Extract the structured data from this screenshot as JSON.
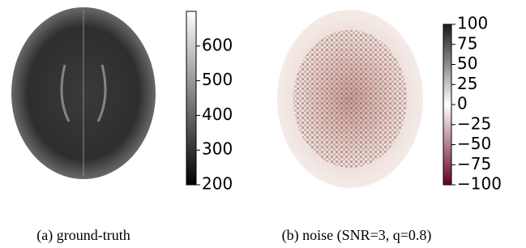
{
  "chart_data": [
    {
      "type": "image",
      "caption": "(a) ground-truth",
      "colors": [
        "#000000",
        "#ffffff"
      ],
      "ylim": [
        200,
        700
      ],
      "yticks": [
        200,
        300,
        400,
        500,
        600
      ]
    },
    {
      "type": "image",
      "caption": "(b) noise (SNR=3, q=0.8)",
      "colors": [
        "#67001f",
        "#ffffff",
        "#1a1a1a"
      ],
      "ylim": [
        -100,
        100
      ],
      "yticks": [
        {
          "value": -100,
          "label": "−100"
        },
        {
          "value": -75,
          "label": "−75"
        },
        {
          "value": -50,
          "label": "−50"
        },
        {
          "value": -25,
          "label": "−25"
        },
        0,
        25,
        50,
        75,
        100
      ]
    }
  ]
}
